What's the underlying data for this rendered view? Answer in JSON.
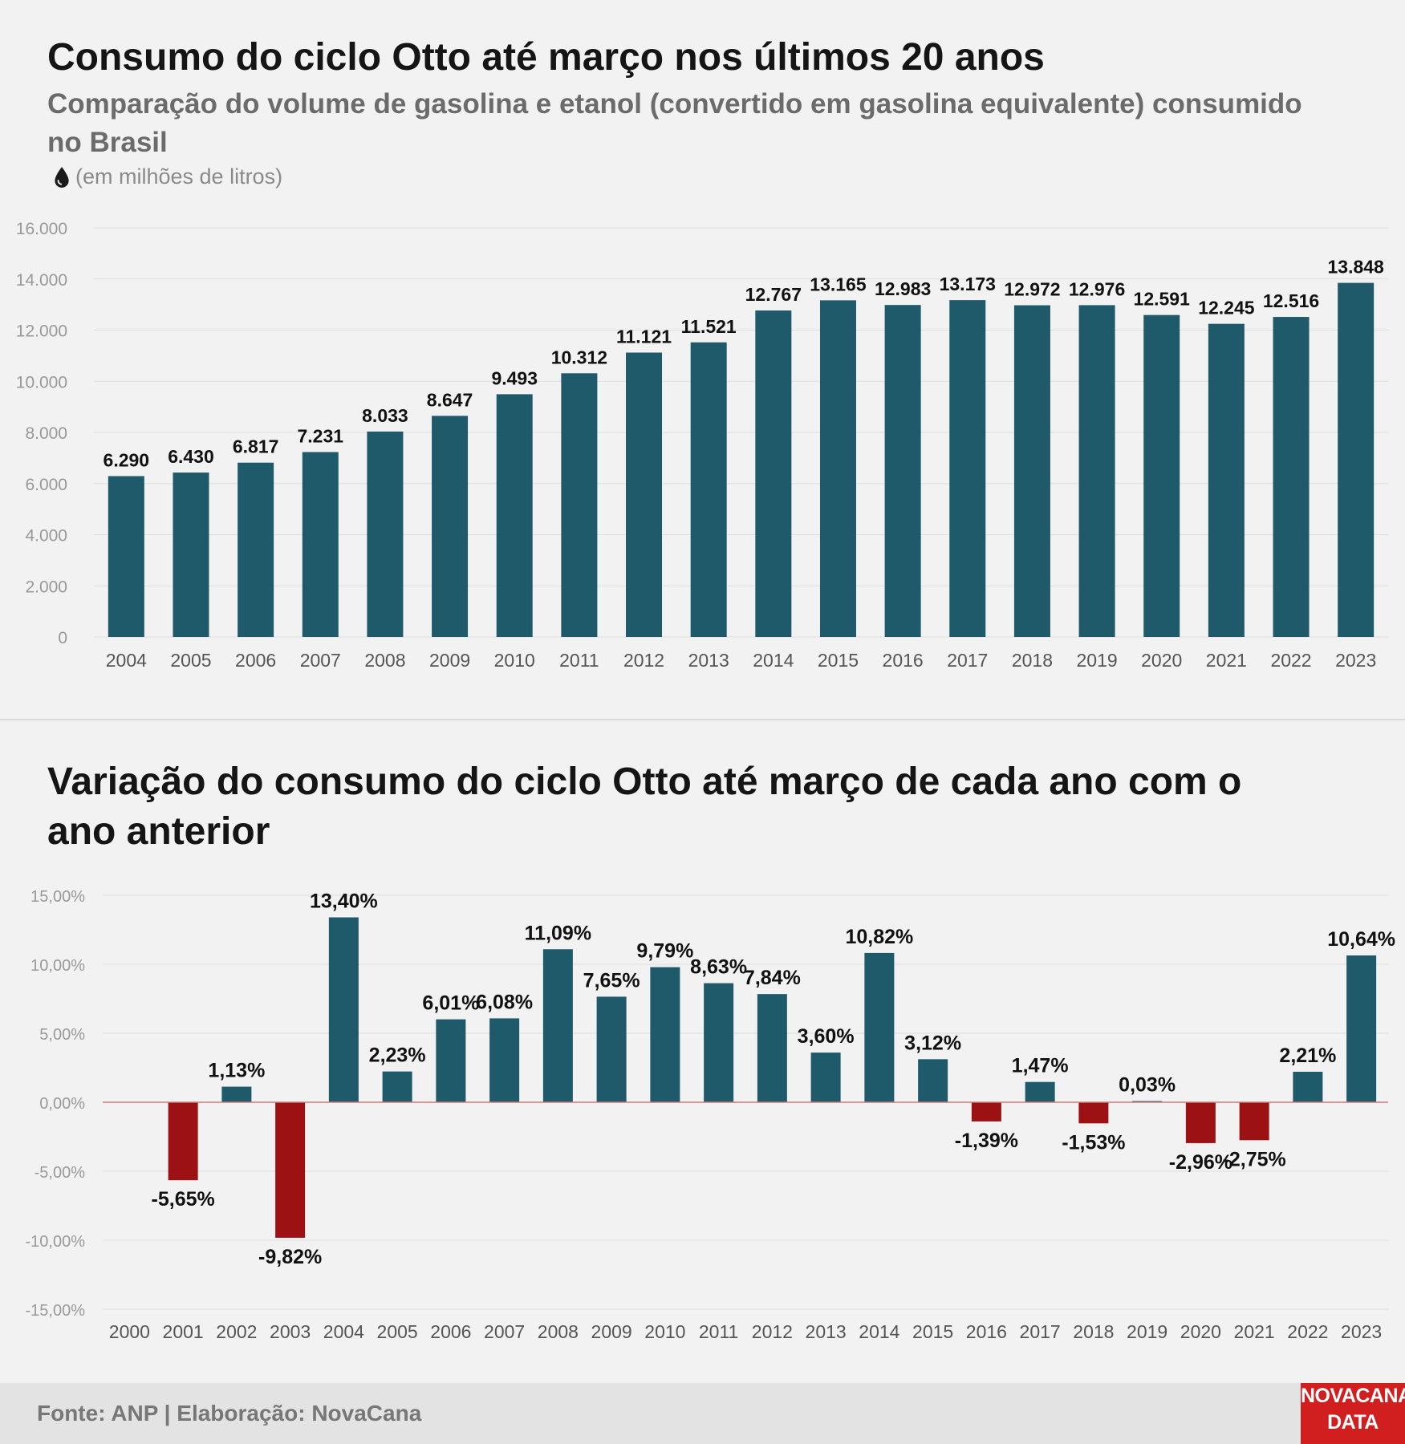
{
  "chart1": {
    "title": "Consumo do ciclo Otto até março nos últimos 20 anos",
    "subtitle": "Comparação do volume de gasolina e etanol (convertido em gasolina equivalente) consumido no Brasil",
    "unit": "(em milhões de litros)",
    "unit_icon": "water-drop-icon"
  },
  "chart2": {
    "title": "Variação do consumo do ciclo Otto até março de cada ano com o ano anterior"
  },
  "footer": {
    "source": "Fonte: ANP | Elaboração: NovaCana",
    "logo_line1": "NOVACANA",
    "logo_line2": "DATA"
  },
  "chart_data": [
    {
      "type": "bar",
      "title": "Consumo do ciclo Otto até março nos últimos 20 anos",
      "categories": [
        "2004",
        "2005",
        "2006",
        "2007",
        "2008",
        "2009",
        "2010",
        "2011",
        "2012",
        "2013",
        "2014",
        "2015",
        "2016",
        "2017",
        "2018",
        "2019",
        "2020",
        "2021",
        "2022",
        "2023"
      ],
      "values": [
        6290,
        6430,
        6817,
        7231,
        8033,
        8647,
        9493,
        10312,
        11121,
        11521,
        12767,
        13165,
        12983,
        13173,
        12972,
        12976,
        12591,
        12245,
        12516,
        13848
      ],
      "labels": [
        "6.290",
        "6.430",
        "6.817",
        "7.231",
        "8.033",
        "8.647",
        "9.493",
        "10.312",
        "11.121",
        "11.521",
        "12.767",
        "13.165",
        "12.983",
        "13.173",
        "12.972",
        "12.976",
        "12.591",
        "12.245",
        "12.516",
        "13.848"
      ],
      "yticks": [
        "0",
        "2.000",
        "4.000",
        "6.000",
        "8.000",
        "10.000",
        "12.000",
        "14.000",
        "16.000"
      ],
      "ylim": [
        0,
        16000
      ],
      "grid": true,
      "bar_color": "#1f5a6b"
    },
    {
      "type": "bar",
      "title": "Variação do consumo do ciclo Otto até março de cada ano com o ano anterior",
      "categories": [
        "2000",
        "2001",
        "2002",
        "2003",
        "2004",
        "2005",
        "2006",
        "2007",
        "2008",
        "2009",
        "2010",
        "2011",
        "2012",
        "2013",
        "2014",
        "2015",
        "2016",
        "2017",
        "2018",
        "2019",
        "2020",
        "2021",
        "2022",
        "2023"
      ],
      "values": [
        null,
        -5.65,
        1.13,
        -9.82,
        13.4,
        2.23,
        6.01,
        6.08,
        11.09,
        7.65,
        9.79,
        8.63,
        7.84,
        3.6,
        10.82,
        3.12,
        -1.39,
        1.47,
        -1.53,
        0.03,
        -2.96,
        -2.75,
        2.21,
        10.64
      ],
      "labels": [
        "",
        "-5,65%",
        "1,13%",
        "-9,82%",
        "13,40%",
        "2,23%",
        "6,01%",
        "6,08%",
        "11,09%",
        "7,65%",
        "9,79%",
        "8,63%",
        "7,84%",
        "3,60%",
        "10,82%",
        "3,12%",
        "-1,39%",
        "1,47%",
        "-1,53%",
        "0,03%",
        "-2,96%",
        "-2,75%",
        "2,21%",
        "10,64%"
      ],
      "yticks": [
        "-15,00%",
        "-10,00%",
        "-5,00%",
        "0,00%",
        "5,00%",
        "10,00%",
        "15,00%"
      ],
      "ylim": [
        -15,
        15
      ],
      "grid": true,
      "positive_color": "#1f5a6b",
      "negative_color": "#9b1114",
      "zero_line_color": "#d07a7a"
    }
  ]
}
